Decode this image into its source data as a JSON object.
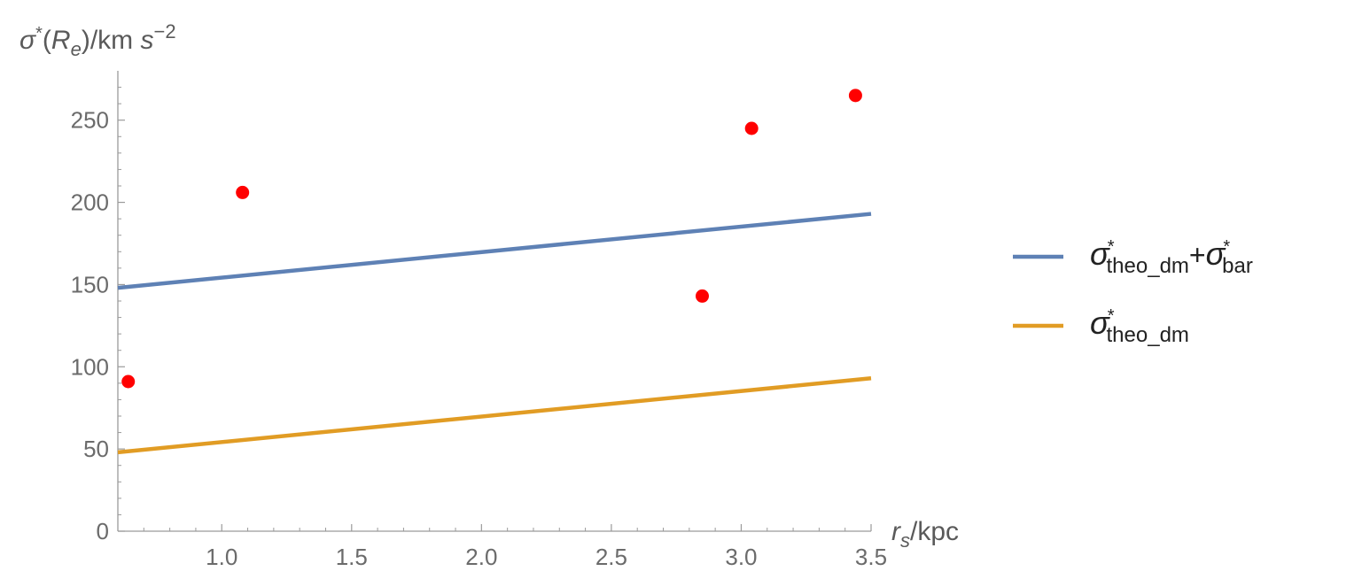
{
  "chart_data": {
    "type": "scatter",
    "xlabel": {
      "sym": "r",
      "sub": "s",
      "unit": "/kpc"
    },
    "ylabel": {
      "sym": "σ",
      "sup": "*",
      "paren_open": "(",
      "arg": "R",
      "arg_sub": "e",
      "paren_close": ")",
      "unit": "/km ",
      "unit_s": "s",
      "unit_exp": "−2"
    },
    "xlim": [
      0.6,
      3.5
    ],
    "ylim": [
      0,
      280
    ],
    "xticks": [
      1.0,
      1.5,
      2.0,
      2.5,
      3.0,
      3.5
    ],
    "xtick_labels": [
      "1.0",
      "1.5",
      "2.0",
      "2.5",
      "3.0",
      "3.5"
    ],
    "yticks": [
      0,
      50,
      100,
      150,
      200,
      250
    ],
    "ytick_labels": [
      "0",
      "50",
      "100",
      "150",
      "200",
      "250"
    ],
    "grid": false,
    "legend_position": "right",
    "points": {
      "color": "#ff0000",
      "x": [
        0.64,
        1.08,
        2.85,
        3.04,
        3.44
      ],
      "y": [
        91,
        206,
        143,
        245,
        265
      ]
    },
    "series": [
      {
        "name": {
          "sym": "σ",
          "sup": "*",
          "sub": "theo_dm",
          "plus": "+",
          "sym2": "σ",
          "sup2": "*",
          "sub2": "bar"
        },
        "color": "#5e81b5",
        "x": [
          0.6,
          3.5
        ],
        "y": [
          148,
          193
        ]
      },
      {
        "name": {
          "sym": "σ",
          "sup": "*",
          "sub": "theo_dm"
        },
        "color": "#e19c24",
        "x": [
          0.6,
          3.5
        ],
        "y": [
          48,
          93
        ]
      }
    ]
  }
}
